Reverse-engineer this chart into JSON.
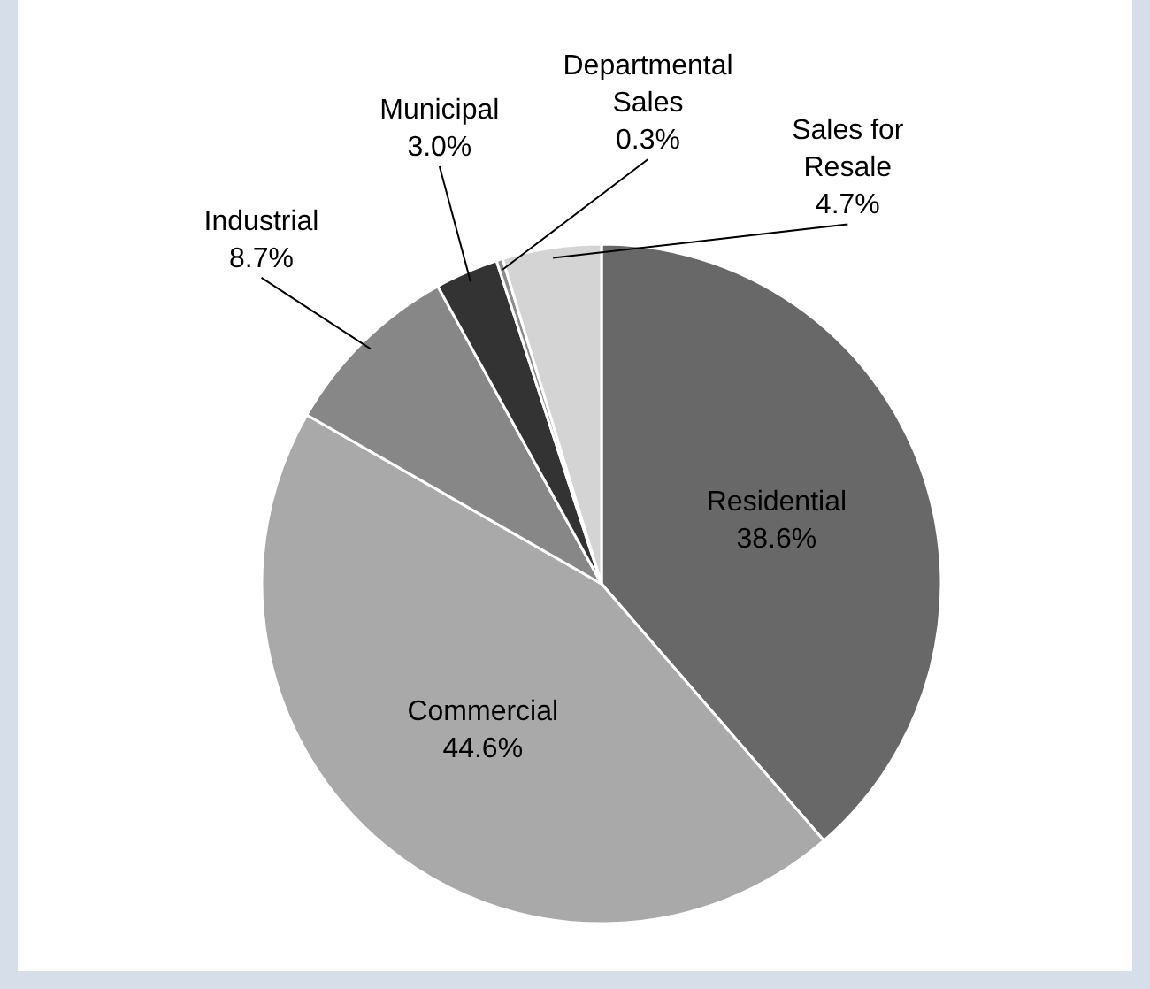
{
  "chart_data": {
    "type": "pie",
    "categories": [
      "Residential",
      "Commercial",
      "Industrial",
      "Municipal",
      "Departmental Sales",
      "Sales for Resale"
    ],
    "values": [
      38.6,
      44.6,
      8.7,
      3.0,
      0.3,
      4.7
    ],
    "colors": [
      "#686868",
      "#a9a9a9",
      "#878787",
      "#333333",
      "#8c8c8c",
      "#d4d4d4"
    ],
    "value_labels": [
      "38.6%",
      "44.6%",
      "8.7%",
      "3.0%",
      "0.3%",
      "4.7%"
    ]
  }
}
